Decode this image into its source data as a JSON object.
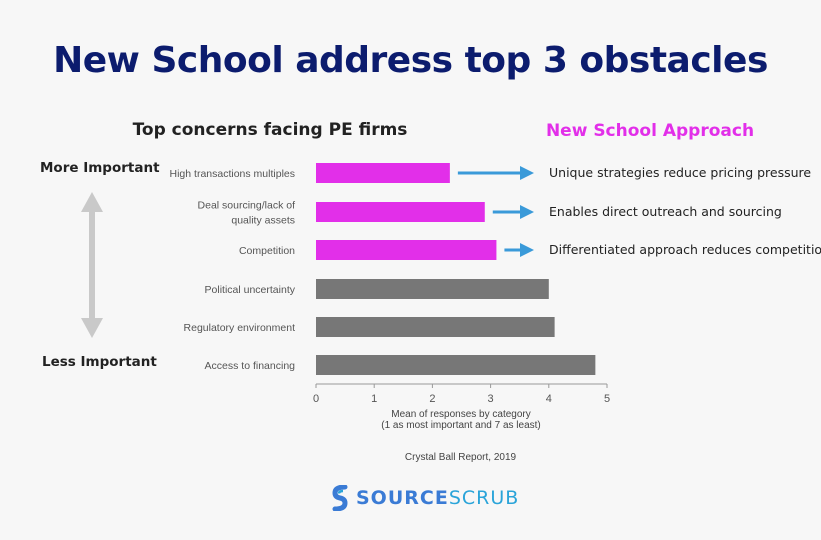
{
  "title": "New School address top 3 obstacles",
  "chart_title": "Top concerns facing PE firms",
  "approach_title": "New School Approach",
  "more_important": "More Important",
  "less_important": "Less Important",
  "colors": {
    "highlight": "#e22fe9",
    "default": "#777777",
    "arrow": "#3a9ad9",
    "title": "#0c1c6e"
  },
  "chart_data": {
    "type": "bar",
    "orientation": "horizontal",
    "categories": [
      "High transactions multiples",
      "Deal sourcing/lack of quality assets",
      "Competition",
      "Political uncertainty",
      "Regulatory environment",
      "Access to financing"
    ],
    "category_lines": [
      [
        "High transactions multiples"
      ],
      [
        "Deal sourcing/lack of",
        "quality assets"
      ],
      [
        "Competition"
      ],
      [
        "Political uncertainty"
      ],
      [
        "Regulatory environment"
      ],
      [
        "Access to financing"
      ]
    ],
    "values": [
      2.3,
      2.9,
      3.1,
      4.0,
      4.1,
      4.8
    ],
    "highlighted": [
      true,
      true,
      true,
      false,
      false,
      false
    ],
    "xlim": [
      0,
      5
    ],
    "xticks": [
      "0",
      "1",
      "2",
      "3",
      "4",
      "5"
    ],
    "xlabel_lines": [
      "Mean of responses by category",
      "(1 as most important and 7 as least)"
    ],
    "grid": false
  },
  "approaches": [
    "Unique strategies reduce pricing pressure",
    "Enables direct outreach and sourcing",
    "Differentiated approach reduces competition"
  ],
  "source": "Crystal Ball Report, 2019",
  "logo": {
    "bold": "SOURCE",
    "light": "SCRUB",
    "icon": "sourcescrub-logo-icon"
  }
}
